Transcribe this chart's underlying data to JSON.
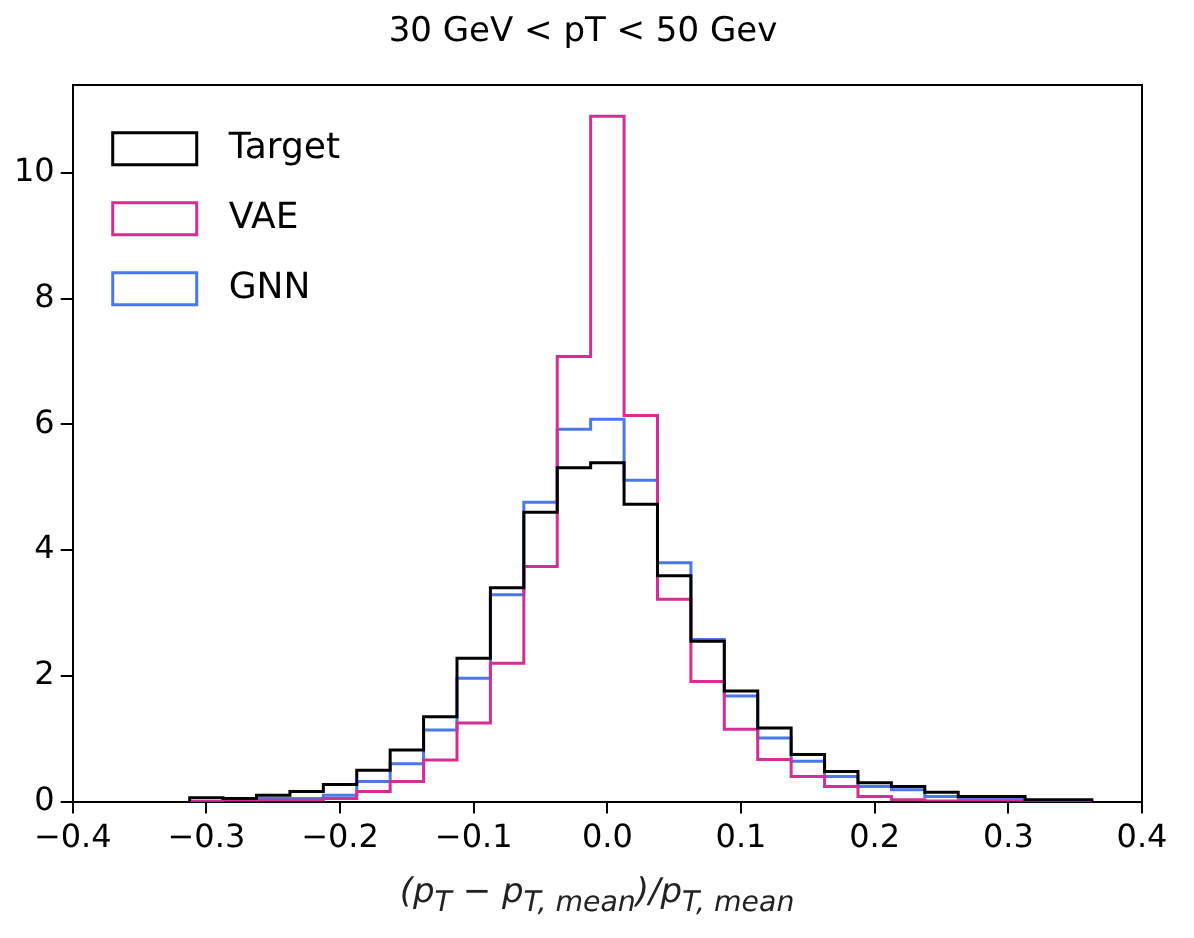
{
  "chart_data": {
    "type": "histogram",
    "title": "30 GeV < pT < 50 Gev",
    "xlabel": "(p$_{T}$ − p$_{T, mean}$)/p$_{T, mean}$",
    "bins": [
      -0.3125,
      -0.2875,
      -0.2625,
      -0.2375,
      -0.2125,
      -0.1875,
      -0.1625,
      -0.1375,
      -0.1125,
      -0.0875,
      -0.0625,
      -0.0375,
      -0.0125,
      0.0125,
      0.0375,
      0.0625,
      0.0875,
      0.1125,
      0.1375,
      0.1625,
      0.1875,
      0.2125,
      0.2375,
      0.2625,
      0.2875,
      0.3125,
      0.3375,
      0.3625
    ],
    "series": [
      {
        "name": "Target",
        "color": "#000000",
        "values": [
          0.06,
          0.05,
          0.1,
          0.16,
          0.27,
          0.5,
          0.82,
          1.35,
          2.28,
          3.4,
          4.6,
          5.31,
          5.39,
          4.73,
          3.59,
          2.55,
          1.76,
          1.17,
          0.75,
          0.48,
          0.3,
          0.24,
          0.15,
          0.08,
          0.08,
          0.03,
          0.03
        ]
      },
      {
        "name": "VAE",
        "color": "#d62d95",
        "values": [
          0,
          0.03,
          0.02,
          0.02,
          0.05,
          0.16,
          0.32,
          0.66,
          1.25,
          2.2,
          3.74,
          7.08,
          10.9,
          6.14,
          3.22,
          1.91,
          1.15,
          0.67,
          0.4,
          0.24,
          0.08,
          0.03,
          0.01,
          0,
          0,
          0,
          0
        ]
      },
      {
        "name": "GNN",
        "color": "#4a78e8",
        "values": [
          0,
          0.02,
          0.05,
          0.05,
          0.1,
          0.32,
          0.6,
          1.14,
          1.96,
          3.29,
          4.76,
          5.92,
          6.08,
          5.11,
          3.8,
          2.58,
          1.68,
          1.01,
          0.64,
          0.4,
          0.24,
          0.19,
          0.08,
          0.05,
          0.05,
          0,
          0
        ]
      }
    ],
    "xlim": [
      -0.4,
      0.4
    ],
    "xticks": [
      -0.4,
      -0.3,
      -0.2,
      -0.1,
      {
        "value": 0,
        "label": "0.0"
      },
      0.1,
      0.2,
      0.3,
      0.4
    ],
    "ylim": [
      0,
      11.4
    ],
    "yticks": [
      0,
      2,
      4,
      6,
      8,
      10
    ],
    "legend": "top left",
    "grid": false
  }
}
